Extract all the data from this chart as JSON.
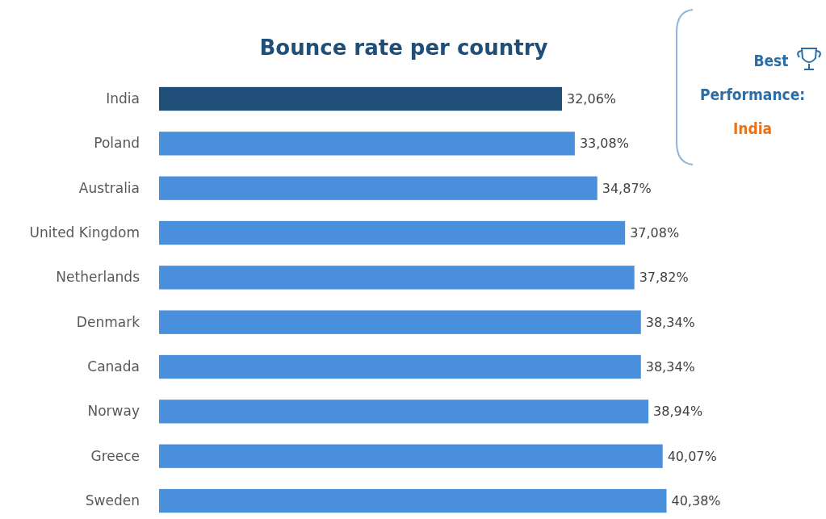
{
  "chart_data": {
    "type": "bar",
    "orientation": "horizontal",
    "title": "Bounce rate per country",
    "categories": [
      "India",
      "Poland",
      "Australia",
      "United Kingdom",
      "Netherlands",
      "Denmark",
      "Canada",
      "Norway",
      "Greece",
      "Sweden"
    ],
    "values": [
      32.06,
      33.08,
      34.87,
      37.08,
      37.82,
      38.34,
      38.34,
      38.94,
      40.07,
      40.38
    ],
    "colors": [
      "#1f4e79",
      "#4a8fdb",
      "#4a8fdb",
      "#4a8fdb",
      "#4a8fdb",
      "#4a8fdb",
      "#4a8fdb",
      "#4a8fdb",
      "#4a8fdb",
      "#4a8fdb"
    ],
    "value_labels": [
      "32,06%",
      "33,08%",
      "34,87%",
      "37,08%",
      "37,82%",
      "38,34%",
      "38,34%",
      "38,94%",
      "40,07%",
      "40,38%"
    ],
    "annotations": [
      "Best",
      "Performance:",
      "India"
    ]
  }
}
